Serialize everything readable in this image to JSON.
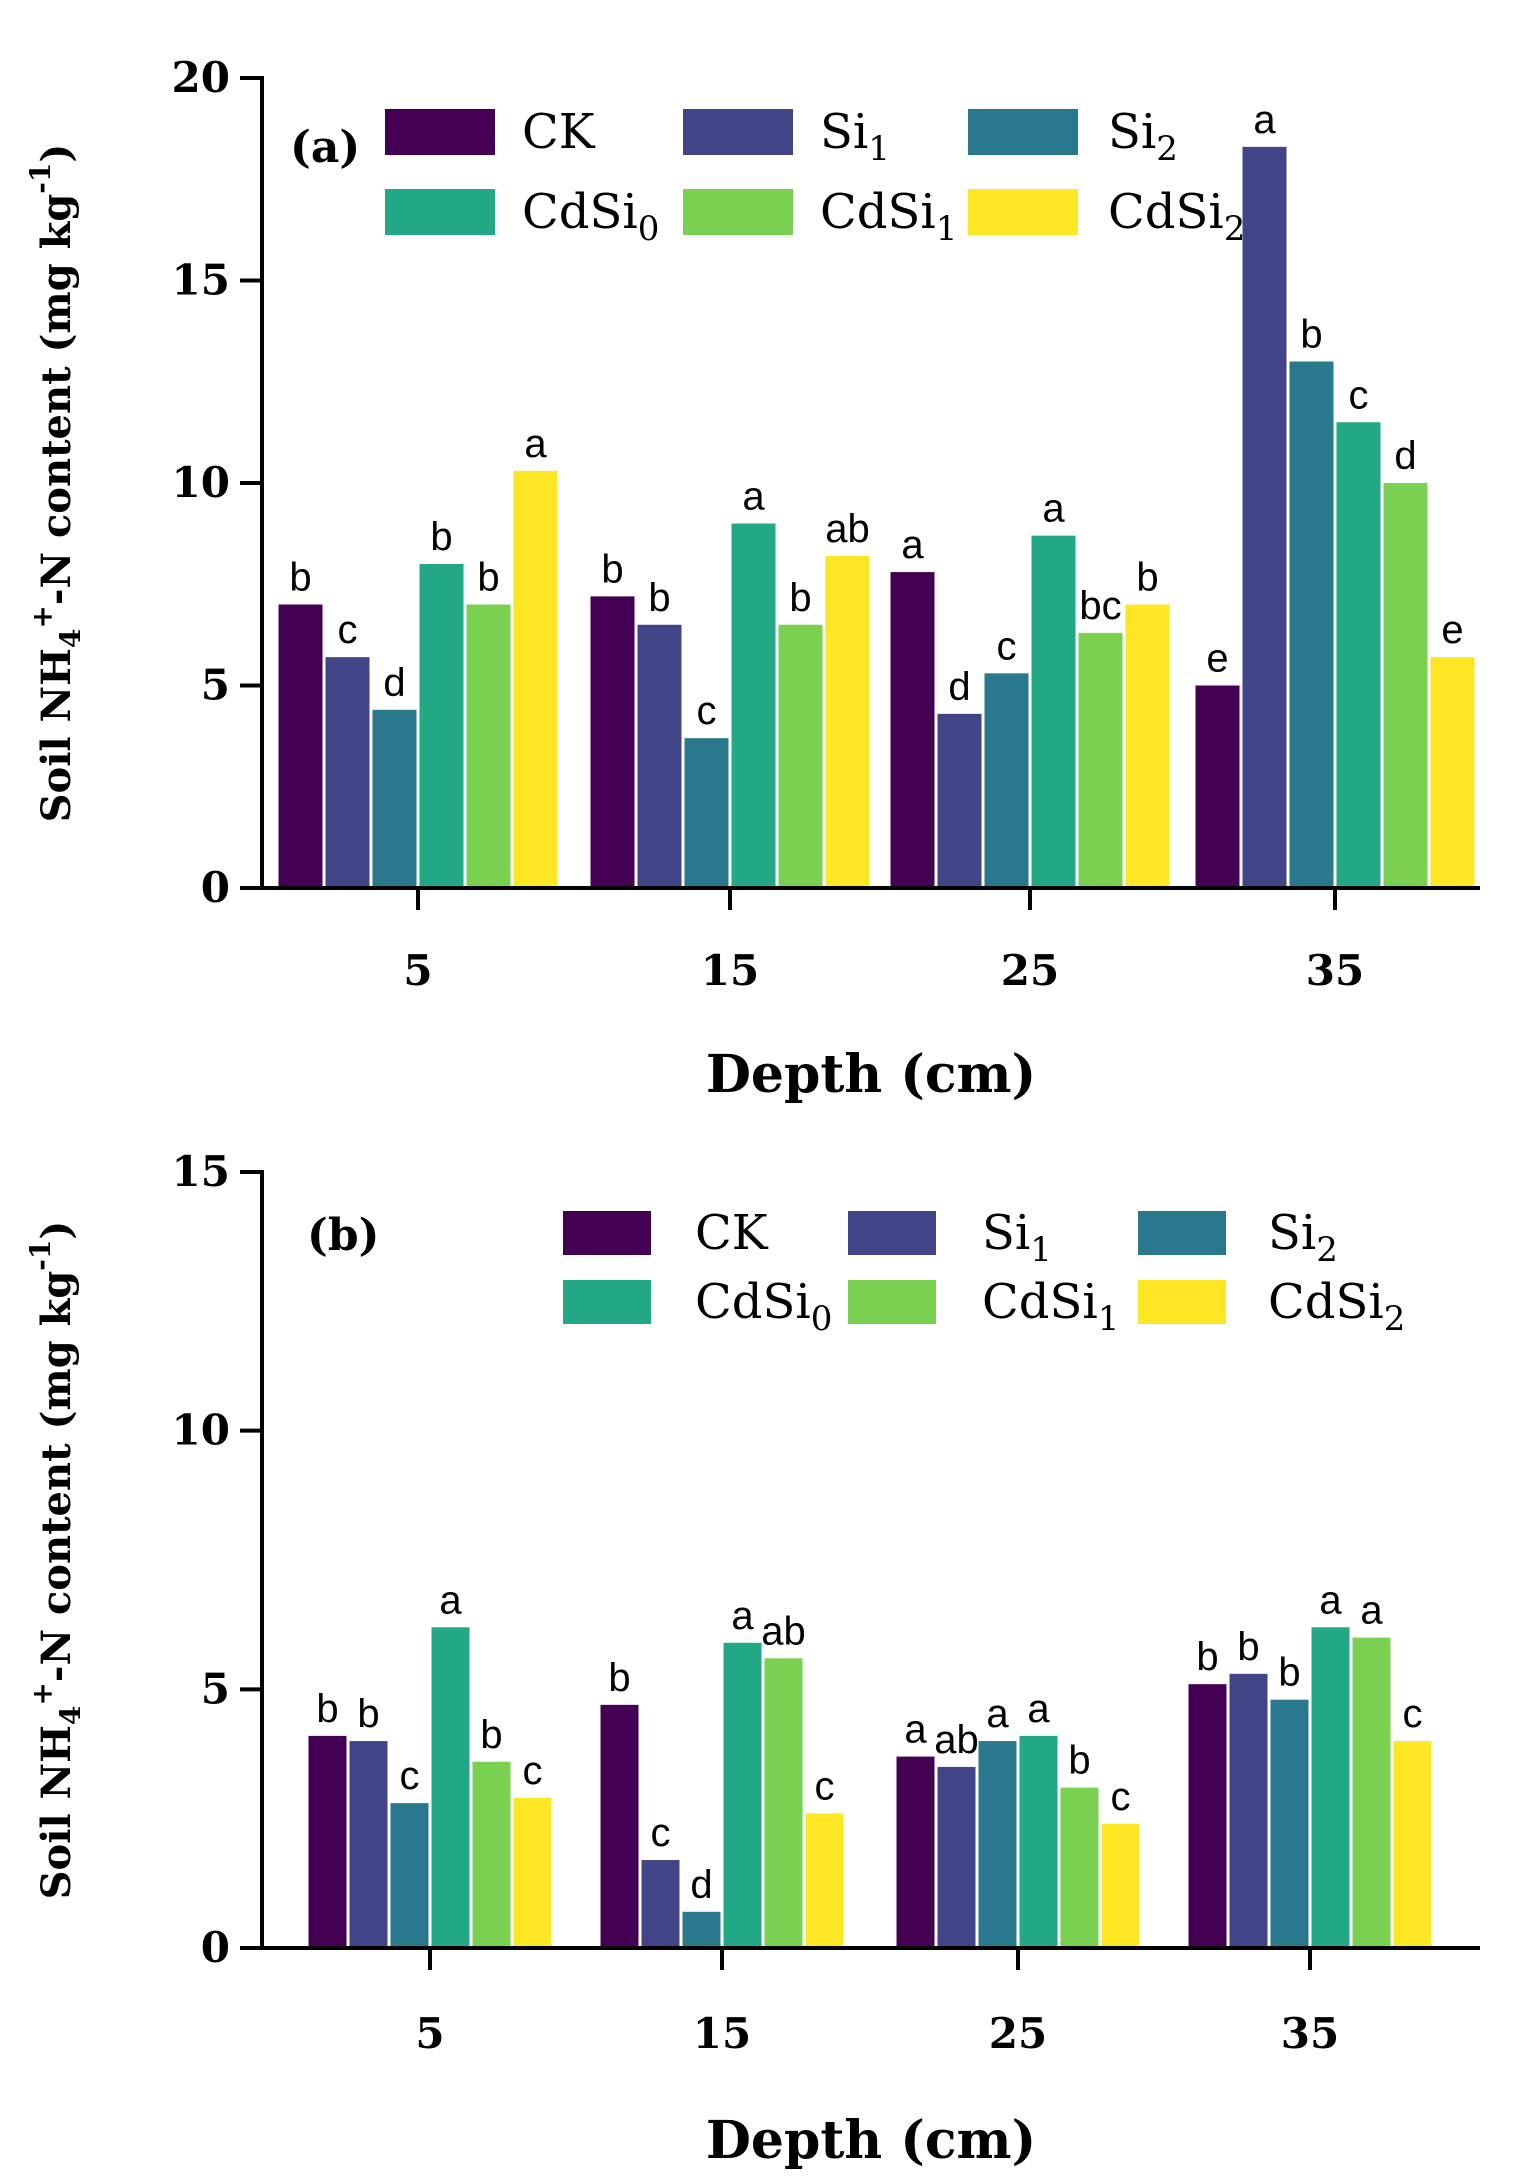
{
  "chart_data": [
    {
      "panel": "(a)",
      "type": "bar",
      "xlabel": "Depth (cm)",
      "ylabel": "Soil NH4+-N content (mg kg-1)",
      "ylim": [
        0,
        20
      ],
      "yticks": [
        0,
        5,
        10,
        15,
        20
      ],
      "categories": [
        "5",
        "15",
        "25",
        "35"
      ],
      "legend_position": "top-left",
      "series": [
        {
          "name": "CK",
          "base": "CK",
          "sub": "",
          "color": "#440154",
          "values": [
            7.0,
            7.2,
            7.8,
            5.0
          ],
          "labels": [
            "b",
            "b",
            "a",
            "e"
          ]
        },
        {
          "name": "Si1",
          "base": "Si",
          "sub": "1",
          "color": "#414487",
          "values": [
            5.7,
            6.5,
            4.3,
            18.3
          ],
          "labels": [
            "c",
            "b",
            "d",
            "a"
          ]
        },
        {
          "name": "Si2",
          "base": "Si",
          "sub": "2",
          "color": "#2A788E",
          "values": [
            4.4,
            3.7,
            5.3,
            13.0
          ],
          "labels": [
            "d",
            "c",
            "c",
            "b"
          ]
        },
        {
          "name": "CdSi0",
          "base": "CdSi",
          "sub": "0",
          "color": "#22A884",
          "values": [
            8.0,
            9.0,
            8.7,
            11.5
          ],
          "labels": [
            "b",
            "a",
            "a",
            "c"
          ]
        },
        {
          "name": "CdSi1",
          "base": "CdSi",
          "sub": "1",
          "color": "#7AD151",
          "values": [
            7.0,
            6.5,
            6.3,
            10.0
          ],
          "labels": [
            "b",
            "b",
            "bc",
            "d"
          ]
        },
        {
          "name": "CdSi2",
          "base": "CdSi",
          "sub": "2",
          "color": "#FDE725",
          "values": [
            10.3,
            8.2,
            7.0,
            5.7
          ],
          "labels": [
            "a",
            "ab",
            "b",
            "e"
          ]
        }
      ]
    },
    {
      "panel": "(b)",
      "type": "bar",
      "xlabel": "Depth (cm)",
      "ylabel": "Soil NH4+-N content (mg kg-1)",
      "ylim": [
        0,
        15
      ],
      "yticks": [
        0,
        5,
        10,
        15
      ],
      "categories": [
        "5",
        "15",
        "25",
        "35"
      ],
      "legend_position": "top-right",
      "series": [
        {
          "name": "CK",
          "base": "CK",
          "sub": "",
          "color": "#440154",
          "values": [
            4.1,
            4.7,
            3.7,
            5.1
          ],
          "labels": [
            "b",
            "b",
            "a",
            "b"
          ]
        },
        {
          "name": "Si1",
          "base": "Si",
          "sub": "1",
          "color": "#414487",
          "values": [
            4.0,
            1.7,
            3.5,
            5.3
          ],
          "labels": [
            "b",
            "c",
            "ab",
            "b"
          ]
        },
        {
          "name": "Si2",
          "base": "Si",
          "sub": "2",
          "color": "#2A788E",
          "values": [
            2.8,
            0.7,
            4.0,
            4.8
          ],
          "labels": [
            "c",
            "d",
            "a",
            "b"
          ]
        },
        {
          "name": "CdSi0",
          "base": "CdSi",
          "sub": "0",
          "color": "#22A884",
          "values": [
            6.2,
            5.9,
            4.1,
            6.2
          ],
          "labels": [
            "a",
            "a",
            "a",
            "a"
          ]
        },
        {
          "name": "CdSi1",
          "base": "CdSi",
          "sub": "1",
          "color": "#7AD151",
          "values": [
            3.6,
            5.6,
            3.1,
            6.0
          ],
          "labels": [
            "b",
            "ab",
            "b",
            "a"
          ]
        },
        {
          "name": "CdSi2",
          "base": "CdSi",
          "sub": "2",
          "color": "#FDE725",
          "values": [
            2.9,
            2.6,
            2.4,
            4.0
          ],
          "labels": [
            "c",
            "c",
            "c",
            "c"
          ]
        }
      ]
    }
  ]
}
